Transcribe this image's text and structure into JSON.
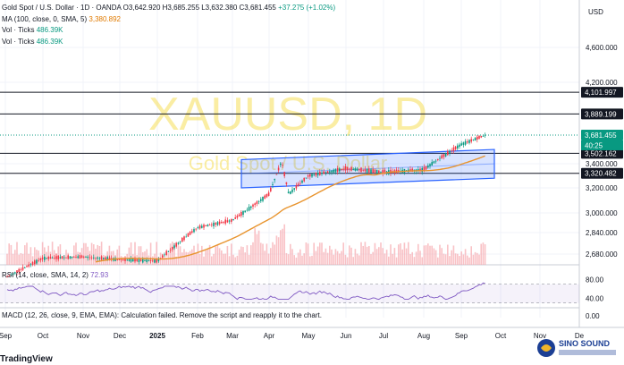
{
  "legend": {
    "title": "Gold Spot / U.S. Dollar · 1D · OANDA",
    "ohlc": "O3,642.920  H3,685.255  L3,632.380  C3,681.455",
    "change": "+37.275 (+1.02%)",
    "ma_label": "MA (100, close, 0, SMA, 5)",
    "ma_value": "3,380.892",
    "vol1_label": "Vol · Ticks",
    "vol1_value": "486.39K",
    "vol2_label": "Vol · Ticks",
    "vol2_value": "486.39K"
  },
  "rsi": {
    "label": "RSI (14, close, SMA, 14, 2)",
    "value": "72.93"
  },
  "macd": {
    "label": "MACD (12, 26, close, 9, EMA, EMA): Calculation failed. Remove the script and reapply it to the chart."
  },
  "currency": "USD",
  "watermark": {
    "symbol": "XAUUSD, 1D",
    "name": "Gold Spot / U.S. Dollar"
  },
  "brand": {
    "logo_text": "SINO SOUND",
    "footer_text": "TradingView"
  },
  "colors": {
    "up": "#089981",
    "down": "#f23645",
    "ma": "#e8942e",
    "rsi": "#7e57c2",
    "channel": "#2962ff",
    "watermark": "#f5d832"
  },
  "chart_data": {
    "type": "candlestick",
    "x_tick_labels": [
      "Sep",
      "Oct",
      "Nov",
      "Dec",
      "2025",
      "Feb",
      "Mar",
      "Apr",
      "May",
      "Jun",
      "Jul",
      "Aug",
      "Sep",
      "Oct",
      "Nov",
      "De"
    ],
    "y_tick_labels": [
      "4,600.000",
      "4,200.000",
      "3,400.000",
      "3,200.000",
      "3,000.000",
      "2,840.000",
      "2,680.000"
    ],
    "y_price_markers": [
      "4,101.997",
      "3,889.199",
      "3,681.455",
      "40:25",
      "3,502.162",
      "3,320.482"
    ],
    "horizontal_levels": [
      4101.997,
      3889.199,
      3502.162,
      3320.482
    ],
    "current_price": 3681.455,
    "trend_points": [
      [
        "Sep",
        2510
      ],
      [
        "Oct",
        2650
      ],
      [
        "Nov",
        2660
      ],
      [
        "Dec",
        2640
      ],
      [
        "2025",
        2630
      ],
      [
        "Feb",
        2880
      ],
      [
        "Mar",
        2940
      ],
      [
        "Apr",
        3150
      ],
      [
        "Apr",
        3420
      ],
      [
        "Apr",
        3150
      ],
      [
        "May",
        3300
      ],
      [
        "Jun",
        3360
      ],
      [
        "Jul",
        3330
      ],
      [
        "Aug",
        3350
      ],
      [
        "Sep",
        3590
      ],
      [
        "Sep",
        3681
      ]
    ],
    "ma_value": 3380.892,
    "channel": {
      "from": "Mar",
      "to": "Sep",
      "upper": [
        3440,
        3540
      ],
      "lower": [
        3200,
        3280
      ]
    },
    "rsi_ticks": [
      "80.00",
      "40.00"
    ],
    "rsi_last": 72.93,
    "macd_ticks": [
      "0.00"
    ]
  }
}
